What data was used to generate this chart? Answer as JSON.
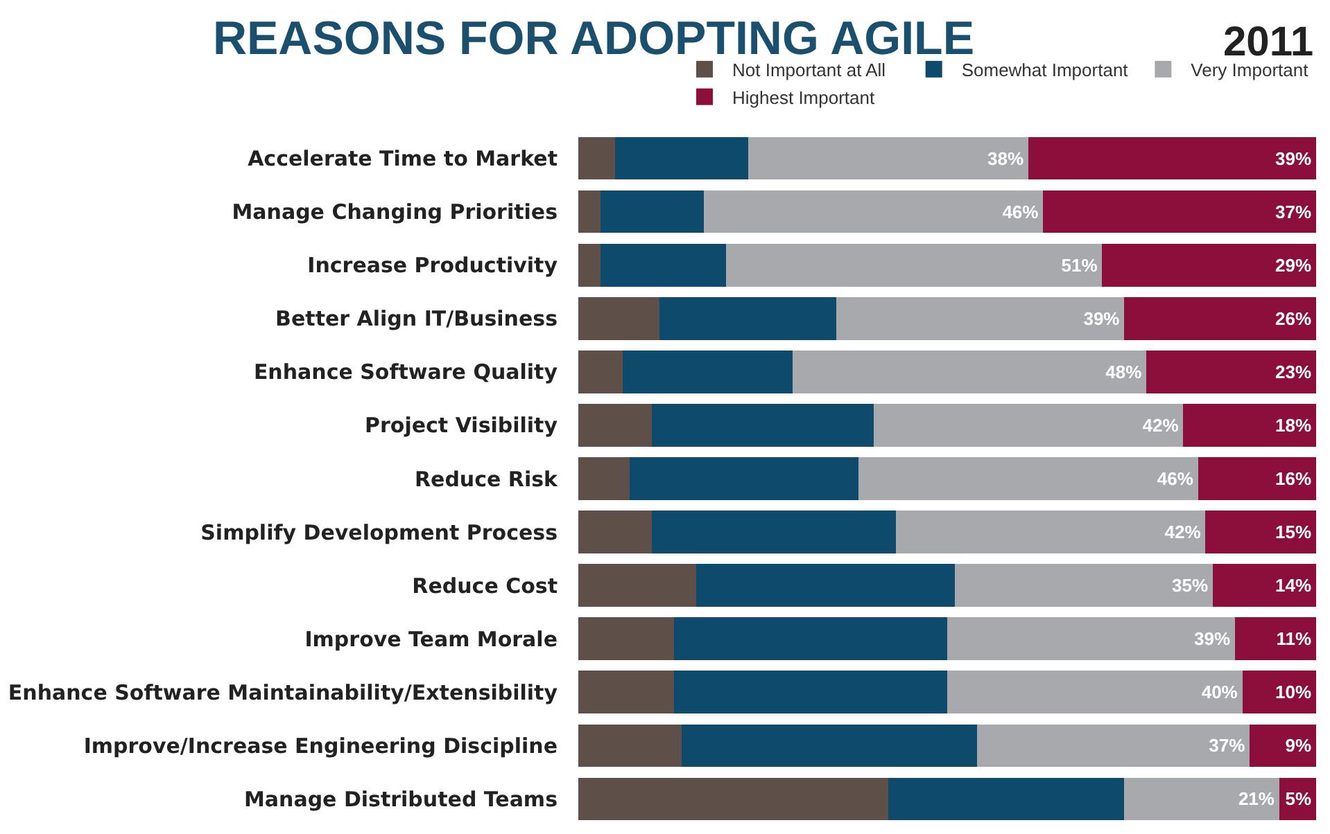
{
  "chart_data": {
    "type": "bar",
    "title": "REASONS FOR ADOPTING AGILE",
    "subtitle": "2011",
    "orientation": "horizontal",
    "stacked": true,
    "legend": "top right",
    "tick_labels": "y",
    "xlim": [
      0,
      100
    ],
    "categories": [
      "Accelerate Time to Market",
      "Manage Changing Priorities",
      "Increase Productivity",
      "Better Align IT/Business",
      "Enhance Software Quality",
      "Project Visibility",
      "Reduce Risk",
      "Simplify Development Process",
      "Reduce Cost",
      "Improve Team Morale",
      "Enhance Software Maintainability/Extensibility",
      "Improve/Increase Engineering Discipline",
      "Manage Distributed Teams"
    ],
    "series": [
      {
        "name": "Not Important at All",
        "color": "#5e5049",
        "values": [
          5,
          3,
          3,
          11,
          6,
          10,
          7,
          10,
          16,
          13,
          13,
          14,
          42
        ]
      },
      {
        "name": "Somewhat Important",
        "color": "#0d4a6b",
        "values": [
          18,
          14,
          17,
          24,
          23,
          30,
          31,
          33,
          35,
          37,
          37,
          40,
          32
        ]
      },
      {
        "name": "Very Important",
        "color": "#a7a9ac",
        "values": [
          38,
          46,
          51,
          39,
          48,
          42,
          46,
          42,
          35,
          39,
          40,
          37,
          21
        ],
        "value_labels": [
          "38%",
          "46%",
          "51%",
          "39%",
          "48%",
          "42%",
          "46%",
          "42%",
          "35%",
          "39%",
          "40%",
          "37%",
          "21%"
        ]
      },
      {
        "name": "Highest Important",
        "color": "#8b0f3a",
        "values": [
          39,
          37,
          29,
          26,
          23,
          18,
          16,
          15,
          14,
          11,
          10,
          9,
          5
        ],
        "value_labels": [
          "39%",
          "37%",
          "29%",
          "26%",
          "23%",
          "18%",
          "16%",
          "15%",
          "14%",
          "11%",
          "10%",
          "9%",
          "5%"
        ]
      }
    ]
  }
}
